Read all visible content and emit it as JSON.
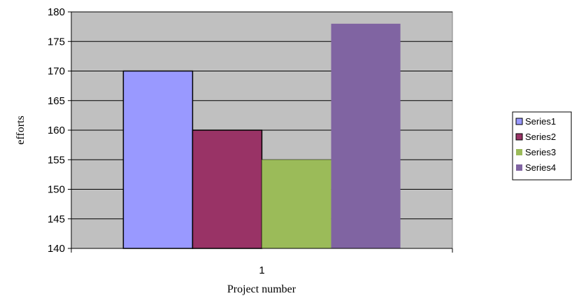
{
  "chart_data": {
    "type": "bar",
    "categories": [
      "1"
    ],
    "series": [
      {
        "name": "Series1",
        "values": [
          170
        ],
        "color": "#9999ff"
      },
      {
        "name": "Series2",
        "values": [
          160
        ],
        "color": "#993366"
      },
      {
        "name": "Series3",
        "values": [
          155
        ],
        "color": "#9bbb59"
      },
      {
        "name": "Series4",
        "values": [
          178
        ],
        "color": "#8064a2"
      }
    ],
    "title": "",
    "xlabel": "Project number",
    "ylabel": "efforts",
    "ylim": [
      140,
      180
    ],
    "yticks": [
      140,
      145,
      150,
      155,
      160,
      165,
      170,
      175,
      180
    ],
    "grid": true,
    "plot_background": "#c0c0c0",
    "legend_position": "right"
  }
}
